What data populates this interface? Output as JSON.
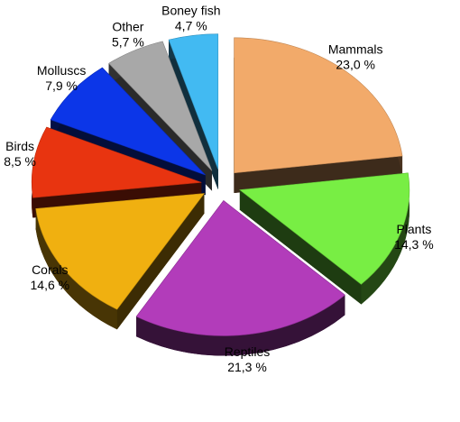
{
  "chart_data": {
    "type": "pie",
    "categories": [
      "Mammals",
      "Plants",
      "Reptiles",
      "Corals",
      "Birds",
      "Molluscs",
      "Other",
      "Boney fish"
    ],
    "values": [
      23.0,
      14.3,
      21.3,
      14.6,
      8.5,
      7.9,
      5.7,
      4.7
    ],
    "value_labels": [
      "23,0 %",
      "14,3 %",
      "21,3 %",
      "14,6 %",
      "8,5 %",
      "7,9 %",
      "5,7 %",
      "4,7 %"
    ],
    "colors": [
      "#f2aa6a",
      "#78ee44",
      "#b23cba",
      "#f0b010",
      "#e83410",
      "#0c36e8",
      "#a8a8a8",
      "#42baf2"
    ]
  }
}
